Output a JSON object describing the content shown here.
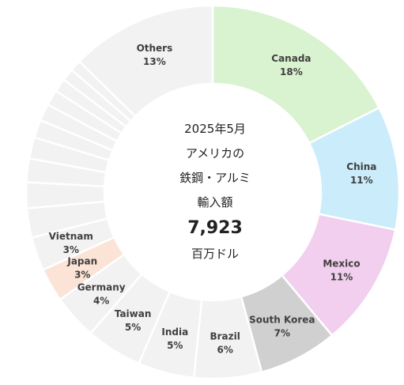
{
  "center": {
    "line1": "2025年5月",
    "line2": "アメリカの",
    "line3": "鉄鋼・アルミ",
    "line4": "輸入額",
    "value": "7,923",
    "unit": "百万ドル"
  },
  "chart_data": {
    "type": "pie",
    "style": "donut",
    "slices": [
      {
        "label": "Canada",
        "pct": "18%",
        "value": 18,
        "color": "#d9f2d0"
      },
      {
        "label": "China",
        "pct": "11%",
        "value": 11,
        "color": "#caecfb"
      },
      {
        "label": "Mexico",
        "pct": "11%",
        "value": 11,
        "color": "#f2cfee"
      },
      {
        "label": "South Korea",
        "pct": "7%",
        "value": 7,
        "color": "#d0d0d0"
      },
      {
        "label": "Brazil",
        "pct": "6%",
        "value": 6,
        "color": "#f2f2f2"
      },
      {
        "label": "India",
        "pct": "5%",
        "value": 5,
        "color": "#f2f2f2"
      },
      {
        "label": "Taiwan",
        "pct": "5%",
        "value": 5,
        "color": "#f2f2f2"
      },
      {
        "label": "Germany",
        "pct": "4%",
        "value": 4,
        "color": "#f2f2f2"
      },
      {
        "label": "Japan",
        "pct": "3%",
        "value": 3,
        "color": "#fbe3d6"
      },
      {
        "label": "Vietnam",
        "pct": "3%",
        "value": 3,
        "color": "#f2f2f2"
      },
      {
        "label": "",
        "pct": "",
        "value": 2.6,
        "color": "#f2f2f2"
      },
      {
        "label": "",
        "pct": "",
        "value": 2.3,
        "color": "#f2f2f2"
      },
      {
        "label": "",
        "pct": "",
        "value": 2.1,
        "color": "#f2f2f2"
      },
      {
        "label": "",
        "pct": "",
        "value": 1.9,
        "color": "#f2f2f2"
      },
      {
        "label": "",
        "pct": "",
        "value": 1.6,
        "color": "#f2f2f2"
      },
      {
        "label": "",
        "pct": "",
        "value": 1.5,
        "color": "#f2f2f2"
      },
      {
        "label": "",
        "pct": "",
        "value": 1.4,
        "color": "#f2f2f2"
      },
      {
        "label": "",
        "pct": "",
        "value": 1.2,
        "color": "#f2f2f2"
      },
      {
        "label": "",
        "pct": "",
        "value": 1.1,
        "color": "#f2f2f2"
      },
      {
        "label": "",
        "pct": "",
        "value": 1.0,
        "color": "#f2f2f2"
      },
      {
        "label": "Others",
        "pct": "13%",
        "value": 13,
        "color": "#f2f2f2"
      }
    ]
  }
}
